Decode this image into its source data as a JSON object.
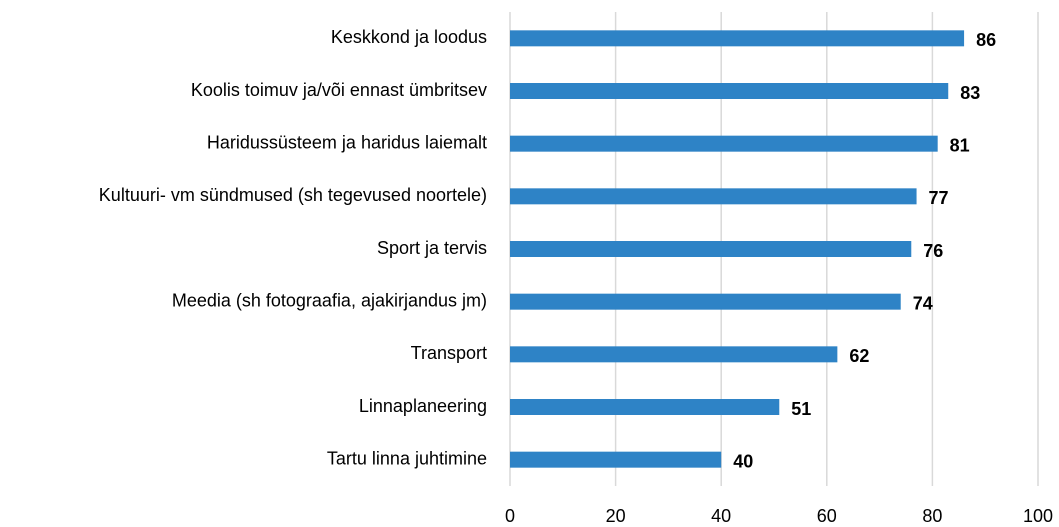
{
  "chart_data": {
    "type": "bar",
    "orientation": "horizontal",
    "categories": [
      "Keskkond ja loodus",
      "Koolis toimuv ja/või ennast ümbritsev",
      "Haridussüsteem ja haridus laiemalt",
      "Kultuuri- vm sündmused (sh tegevused noortele)",
      "Sport ja tervis",
      "Meedia (sh fotograafia, ajakirjandus jm)",
      "Transport",
      "Linnaplaneering",
      "Tartu linna juhtimine"
    ],
    "values": [
      86,
      83,
      81,
      77,
      76,
      74,
      62,
      51,
      40
    ],
    "color": "#2e83c6",
    "xlim": [
      0,
      100
    ],
    "xticks": [
      0,
      20,
      40,
      60,
      80,
      100
    ],
    "grid": true
  }
}
